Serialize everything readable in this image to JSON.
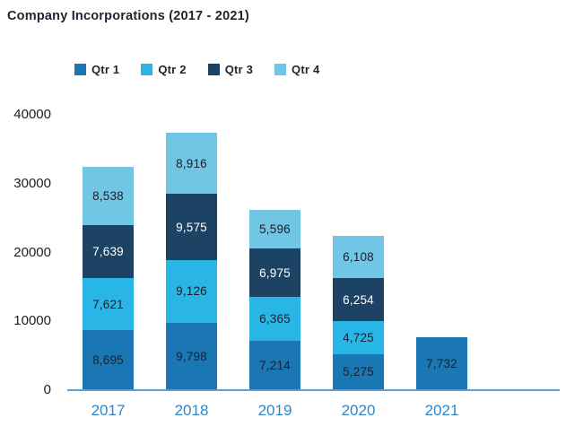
{
  "colors": {
    "background": "#FFFFFF",
    "title_text": "#1E2430",
    "legend_text": "#1E2430",
    "tick_label_text": "#1A1E26",
    "year_label_text": "#2E86C4",
    "axis_line": "#57A0D6",
    "value_label_dark": "#1B1F2A",
    "value_label_light": "#FFFFFF"
  },
  "chart_data": {
    "type": "bar",
    "stacked": true,
    "title": "Company Incorporations (2017 - 2021)",
    "xlabel": "",
    "ylabel": "",
    "categories": [
      "2017",
      "2018",
      "2019",
      "2020",
      "2021"
    ],
    "series": [
      {
        "name": "Qtr 1",
        "color": "#1B77B4",
        "label_text_color": "#1B1F2A",
        "values": [
          8695,
          9798,
          7214,
          5275,
          7732
        ]
      },
      {
        "name": "Qtr 2",
        "color": "#29B6E6",
        "label_text_color": "#1B1F2A",
        "values": [
          7621,
          9126,
          6365,
          4725,
          null
        ]
      },
      {
        "name": "Qtr 3",
        "color": "#1C4264",
        "label_text_color": "#FFFFFF",
        "values": [
          7639,
          9575,
          6975,
          6254,
          null
        ]
      },
      {
        "name": "Qtr 4",
        "color": "#70C6E4",
        "label_text_color": "#1B1F2A",
        "values": [
          8538,
          8916,
          5596,
          6108,
          null
        ]
      }
    ],
    "y_ticks": [
      0,
      10000,
      20000,
      30000,
      40000
    ],
    "ylim": [
      0,
      40000
    ],
    "grid": false,
    "legend_position": "top",
    "value_label_format": "thousands-comma"
  }
}
